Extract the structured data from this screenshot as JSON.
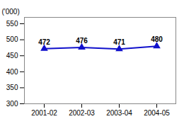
{
  "chart_data": {
    "type": "line",
    "categories": [
      "2001-02",
      "2002-03",
      "2003-04",
      "2004-05"
    ],
    "values": [
      472,
      476,
      471,
      480
    ],
    "color": "#1111cc",
    "marker": "triangle",
    "ylim": [
      300,
      570
    ],
    "yticks": [
      300,
      350,
      400,
      450,
      500,
      550
    ],
    "ylabel": "('000)",
    "data_labels": true,
    "grid": false
  }
}
